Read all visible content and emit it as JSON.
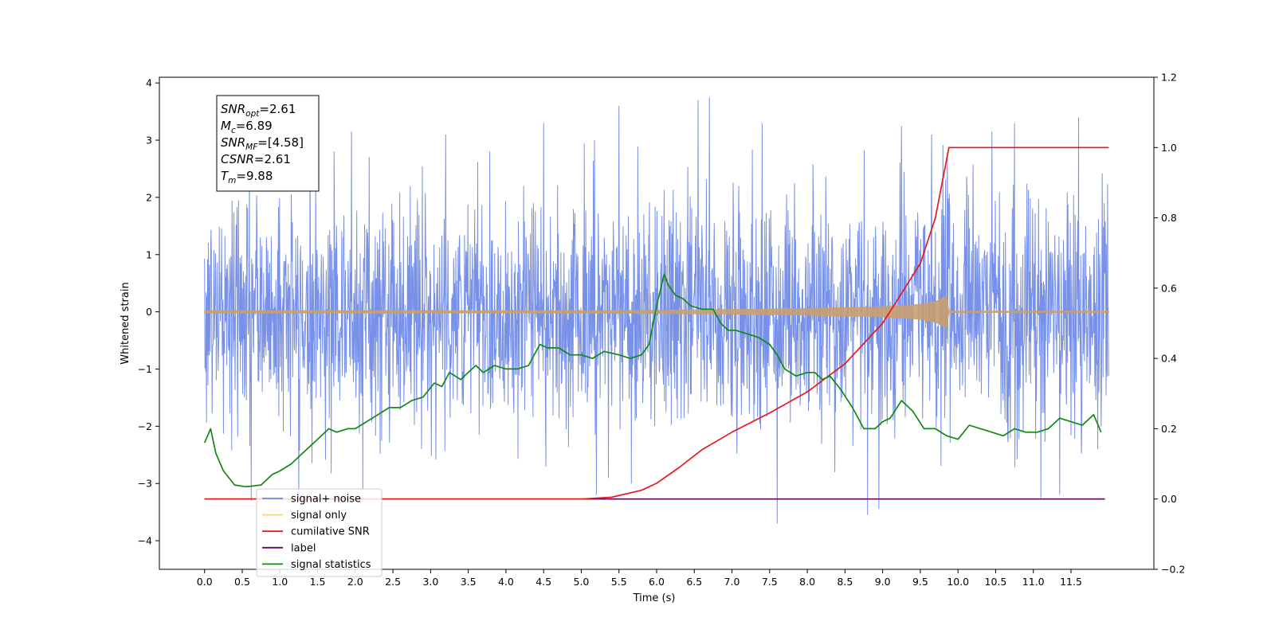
{
  "chart_data": {
    "type": "line",
    "xlabel": "Time (s)",
    "ylabel": "Whitened strain",
    "xlim": [
      -0.6,
      12.6
    ],
    "ylim": [
      -4.5,
      4.1
    ],
    "y2lim": [
      -0.2,
      1.2
    ],
    "x_ticks": [
      0.0,
      0.5,
      1.0,
      1.5,
      2.0,
      2.5,
      3.0,
      3.5,
      4.0,
      4.5,
      5.0,
      5.5,
      6.0,
      6.5,
      7.0,
      7.5,
      8.0,
      8.5,
      9.0,
      9.5,
      10.0,
      10.5,
      11.0,
      11.5
    ],
    "x_tick_labels": [
      "0.0",
      "0.5",
      "1.0",
      "1.5",
      "2.0",
      "2.5",
      "3.0",
      "3.5",
      "4.0",
      "4.5",
      "5.0",
      "5.5",
      "6.0",
      "6.5",
      "7.0",
      "7.5",
      "8.0",
      "8.5",
      "9.0",
      "9.5",
      "10.0",
      "10.5",
      "11.0",
      "11.5"
    ],
    "y_ticks": [
      -4,
      -3,
      -2,
      -1,
      0,
      1,
      2,
      3,
      4
    ],
    "y_tick_labels": [
      "−4",
      "−3",
      "−2",
      "−1",
      "0",
      "1",
      "2",
      "3",
      "4"
    ],
    "y2_ticks": [
      -0.2,
      0.0,
      0.2,
      0.4,
      0.6,
      0.8,
      1.0,
      1.2
    ],
    "y2_tick_labels": [
      "−0.2",
      "0.0",
      "0.2",
      "0.4",
      "0.6",
      "0.8",
      "1.0",
      "1.2"
    ],
    "legend_position": "lower-left",
    "info_box": [
      {
        "base": "SNR",
        "sub": "opt",
        "rest": "=2.61"
      },
      {
        "base": "M",
        "sub": "c",
        "rest": "=6.89"
      },
      {
        "base": "SNR",
        "sub": "MF",
        "rest": "=[4.58]"
      },
      {
        "base": "CSNR",
        "sub": "",
        "rest": "=2.61"
      },
      {
        "base": "T",
        "sub": "m",
        "rest": "=9.88"
      }
    ],
    "series": [
      {
        "name": "signal+ noise",
        "axis": "left",
        "color": "#6b87e6",
        "x_range": [
          0.0,
          12.0
        ],
        "std": 1.0,
        "spike_x": [
          0.62,
          1.25,
          1.72,
          1.95,
          2.1,
          3.2,
          4.5,
          5.2,
          5.5,
          6.55,
          6.7,
          7.4,
          7.6,
          8.8,
          8.95,
          9.25,
          9.65,
          10.45,
          10.75,
          11.1,
          11.35,
          11.6
        ],
        "spike_y": [
          -3.3,
          -3.3,
          2.8,
          3.15,
          -3.1,
          3.1,
          3.3,
          -3.2,
          3.6,
          3.7,
          3.75,
          3.3,
          -3.7,
          -3.55,
          -3.45,
          3.25,
          3.1,
          3.15,
          3.3,
          -3.25,
          -3.2,
          3.4
        ]
      },
      {
        "name": "signal only",
        "axis": "left",
        "color": "#f5b041",
        "envelope_x": [
          0.0,
          5.0,
          7.0,
          8.0,
          9.0,
          9.5,
          9.7,
          9.85,
          9.88,
          12.0
        ],
        "envelope_y": [
          0.02,
          0.02,
          0.04,
          0.06,
          0.09,
          0.13,
          0.18,
          0.28,
          0.0,
          0.0
        ]
      },
      {
        "name": "cumilative SNR",
        "axis": "right",
        "color": "#e41a1c",
        "x": [
          0.0,
          5.0,
          5.4,
          5.8,
          6.0,
          6.3,
          6.6,
          7.0,
          7.5,
          8.0,
          8.5,
          9.0,
          9.5,
          9.7,
          9.88,
          12.0
        ],
        "y": [
          0.0,
          0.0,
          0.005,
          0.025,
          0.045,
          0.09,
          0.14,
          0.19,
          0.245,
          0.305,
          0.385,
          0.5,
          0.67,
          0.8,
          1.0,
          1.0
        ]
      },
      {
        "name": "label",
        "axis": "right",
        "color": "#6a006a",
        "x": [
          0.0,
          11.95
        ],
        "y": [
          0.0,
          0.0
        ]
      },
      {
        "name": "signal statistics",
        "axis": "right",
        "color": "#118811",
        "x": [
          0.0,
          0.08,
          0.15,
          0.25,
          0.4,
          0.55,
          0.75,
          0.9,
          1.0,
          1.15,
          1.3,
          1.5,
          1.65,
          1.75,
          1.9,
          2.0,
          2.15,
          2.3,
          2.45,
          2.6,
          2.75,
          2.9,
          3.05,
          3.15,
          3.25,
          3.4,
          3.5,
          3.6,
          3.7,
          3.85,
          4.0,
          4.15,
          4.3,
          4.45,
          4.55,
          4.7,
          4.85,
          5.0,
          5.15,
          5.3,
          5.5,
          5.65,
          5.8,
          5.9,
          6.0,
          6.1,
          6.15,
          6.25,
          6.35,
          6.45,
          6.6,
          6.75,
          6.85,
          6.95,
          7.05,
          7.2,
          7.35,
          7.5,
          7.6,
          7.7,
          7.85,
          8.0,
          8.1,
          8.2,
          8.3,
          8.45,
          8.6,
          8.75,
          8.9,
          9.0,
          9.1,
          9.25,
          9.4,
          9.55,
          9.7,
          9.85,
          10.0,
          10.15,
          10.3,
          10.45,
          10.6,
          10.75,
          10.9,
          11.05,
          11.2,
          11.35,
          11.5,
          11.65,
          11.8,
          11.9
        ],
        "y": [
          0.16,
          0.2,
          0.13,
          0.08,
          0.04,
          0.035,
          0.04,
          0.07,
          0.08,
          0.1,
          0.13,
          0.17,
          0.2,
          0.19,
          0.2,
          0.2,
          0.22,
          0.24,
          0.26,
          0.26,
          0.28,
          0.29,
          0.33,
          0.32,
          0.36,
          0.34,
          0.36,
          0.38,
          0.36,
          0.38,
          0.37,
          0.37,
          0.38,
          0.44,
          0.43,
          0.43,
          0.41,
          0.41,
          0.4,
          0.42,
          0.41,
          0.4,
          0.41,
          0.44,
          0.55,
          0.64,
          0.61,
          0.58,
          0.57,
          0.55,
          0.54,
          0.54,
          0.5,
          0.48,
          0.48,
          0.47,
          0.46,
          0.44,
          0.41,
          0.37,
          0.35,
          0.36,
          0.36,
          0.34,
          0.35,
          0.31,
          0.26,
          0.2,
          0.2,
          0.22,
          0.23,
          0.28,
          0.25,
          0.2,
          0.2,
          0.18,
          0.17,
          0.21,
          0.2,
          0.19,
          0.18,
          0.2,
          0.19,
          0.19,
          0.2,
          0.23,
          0.22,
          0.21,
          0.24,
          0.19
        ]
      }
    ],
    "legend_entries": [
      {
        "label": "signal+ noise",
        "color": "#6b87e6"
      },
      {
        "label": "signal only",
        "color": "#ffcc80"
      },
      {
        "label": "cumilative SNR",
        "color": "#e41a1c"
      },
      {
        "label": "label",
        "color": "#6a006a"
      },
      {
        "label": "signal statistics",
        "color": "#118811"
      }
    ]
  }
}
